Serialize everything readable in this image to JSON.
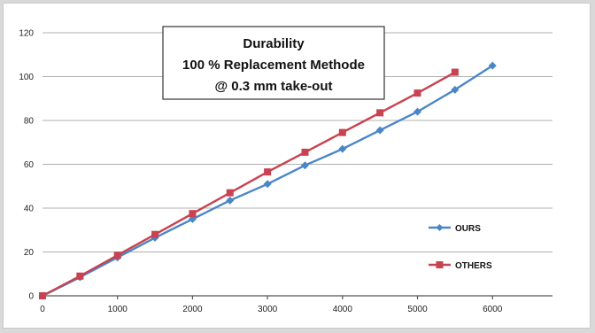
{
  "chart_data": {
    "type": "line",
    "title_lines": [
      "Durability",
      "100 % Replacement Methode",
      "@ 0.3 mm take-out"
    ],
    "xlabel": "",
    "ylabel": "",
    "xlim": [
      0,
      6800
    ],
    "ylim": [
      0,
      120
    ],
    "x_ticks": [
      0,
      1000,
      2000,
      3000,
      4000,
      5000,
      6000
    ],
    "y_ticks": [
      0,
      20,
      40,
      60,
      80,
      100,
      120
    ],
    "grid": "horizontal",
    "legend_position": "right",
    "series": [
      {
        "name": "OURS",
        "color": "#4a86c8",
        "marker": "diamond",
        "x": [
          0,
          500,
          1000,
          1500,
          2000,
          2500,
          3000,
          3500,
          4000,
          4500,
          5000,
          5500,
          6000
        ],
        "y": [
          0,
          8.5,
          17.5,
          26.5,
          35,
          43.5,
          51,
          59.5,
          67,
          75.5,
          84,
          94,
          105
        ]
      },
      {
        "name": "OTHERS",
        "color": "#c8424f",
        "marker": "square",
        "x": [
          0,
          500,
          1000,
          1500,
          2000,
          2500,
          3000,
          3500,
          4000,
          4500,
          5000,
          5500
        ],
        "y": [
          0,
          9,
          18.5,
          28,
          37.5,
          47,
          56.5,
          65.5,
          74.5,
          83.5,
          92.5,
          102
        ]
      }
    ]
  }
}
